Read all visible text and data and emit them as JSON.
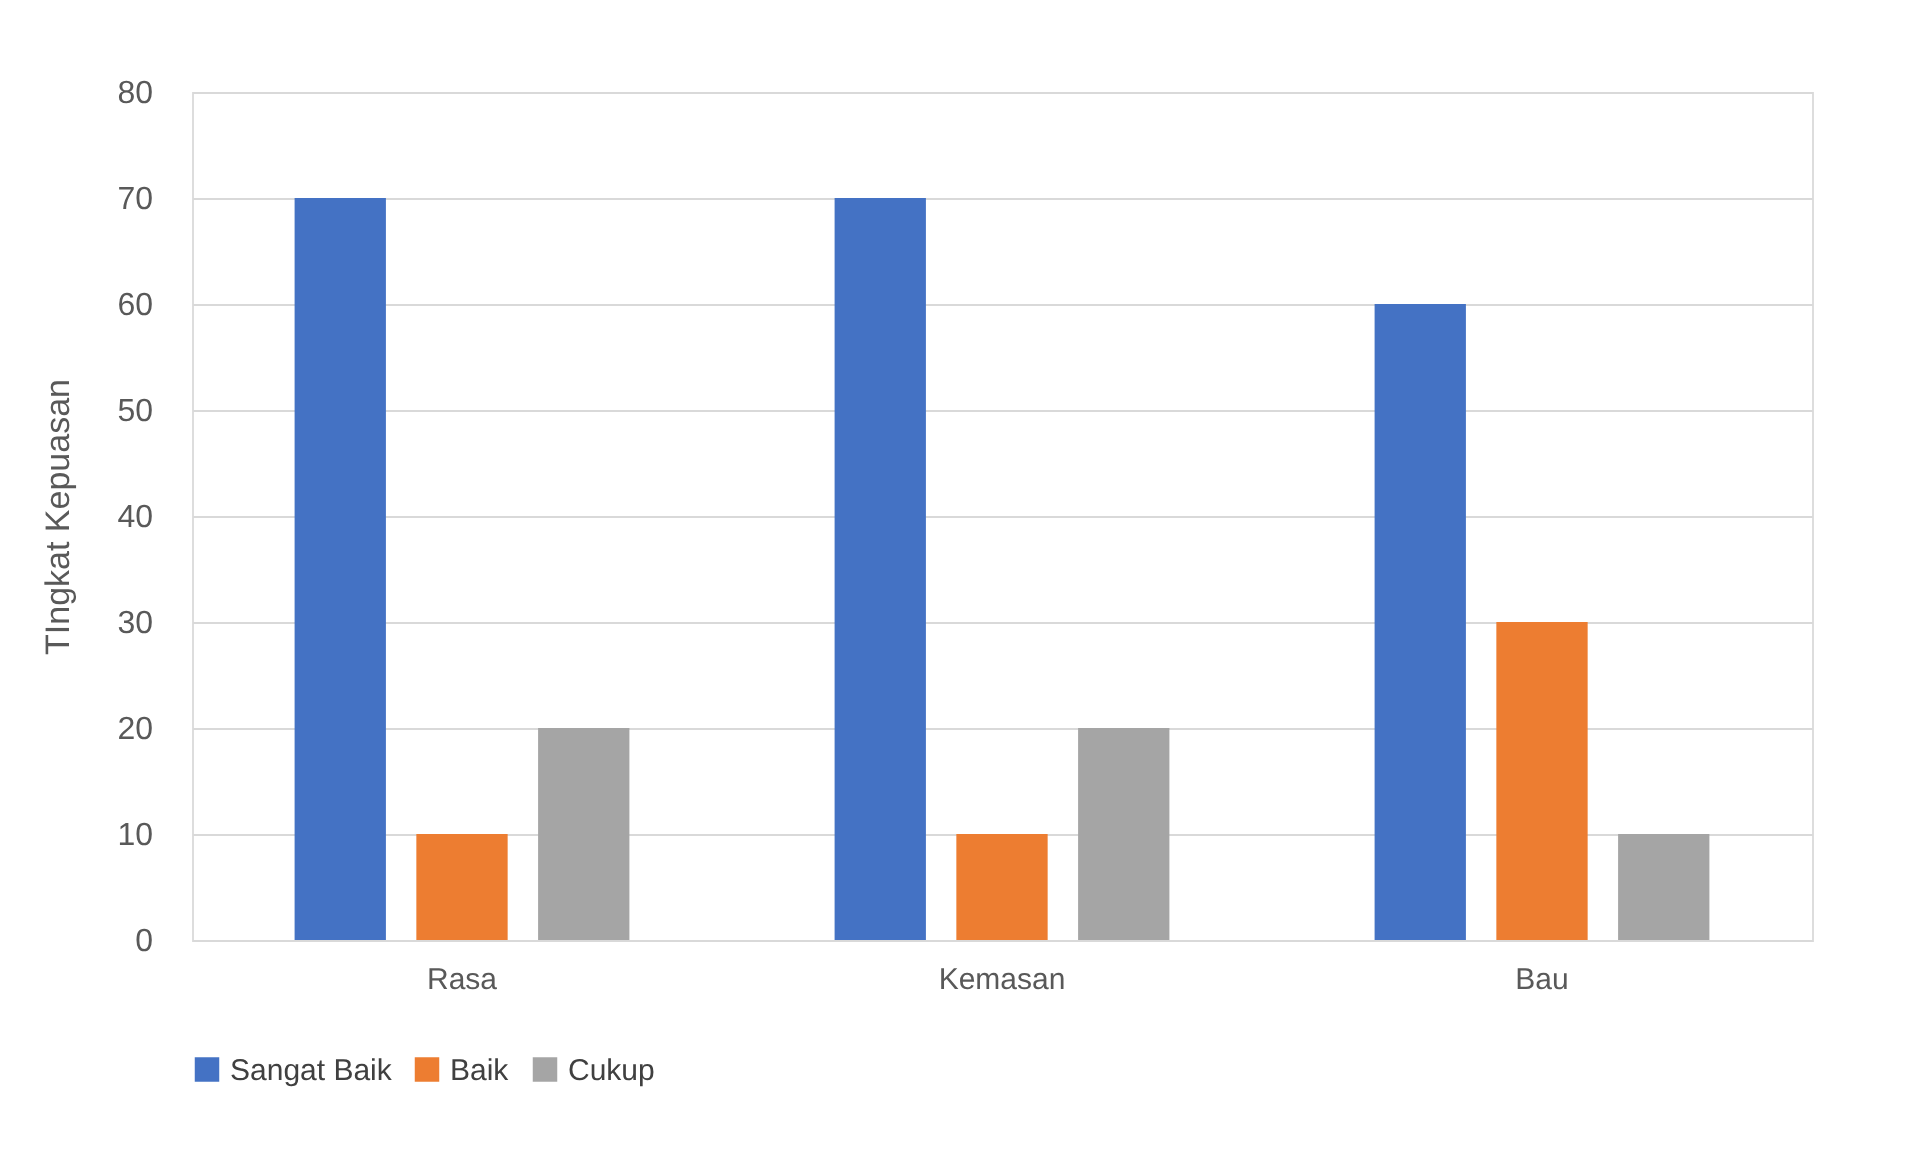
{
  "chart_data": {
    "type": "bar",
    "ylabel": "TIngkat Kepuasan",
    "categories": [
      "Rasa",
      "Kemasan",
      "Bau"
    ],
    "series": [
      {
        "name": "Sangat Baik",
        "color": "#4472c4",
        "values": [
          70,
          70,
          60
        ]
      },
      {
        "name": "Baik",
        "color": "#ed7d31",
        "values": [
          10,
          10,
          30
        ]
      },
      {
        "name": "Cukup",
        "color": "#a5a5a5",
        "values": [
          20,
          20,
          10
        ]
      }
    ],
    "ylim": [
      0,
      80
    ],
    "yticks": [
      0,
      10,
      20,
      30,
      40,
      50,
      60,
      70,
      80
    ],
    "grid": "y",
    "legend": "bottom"
  }
}
